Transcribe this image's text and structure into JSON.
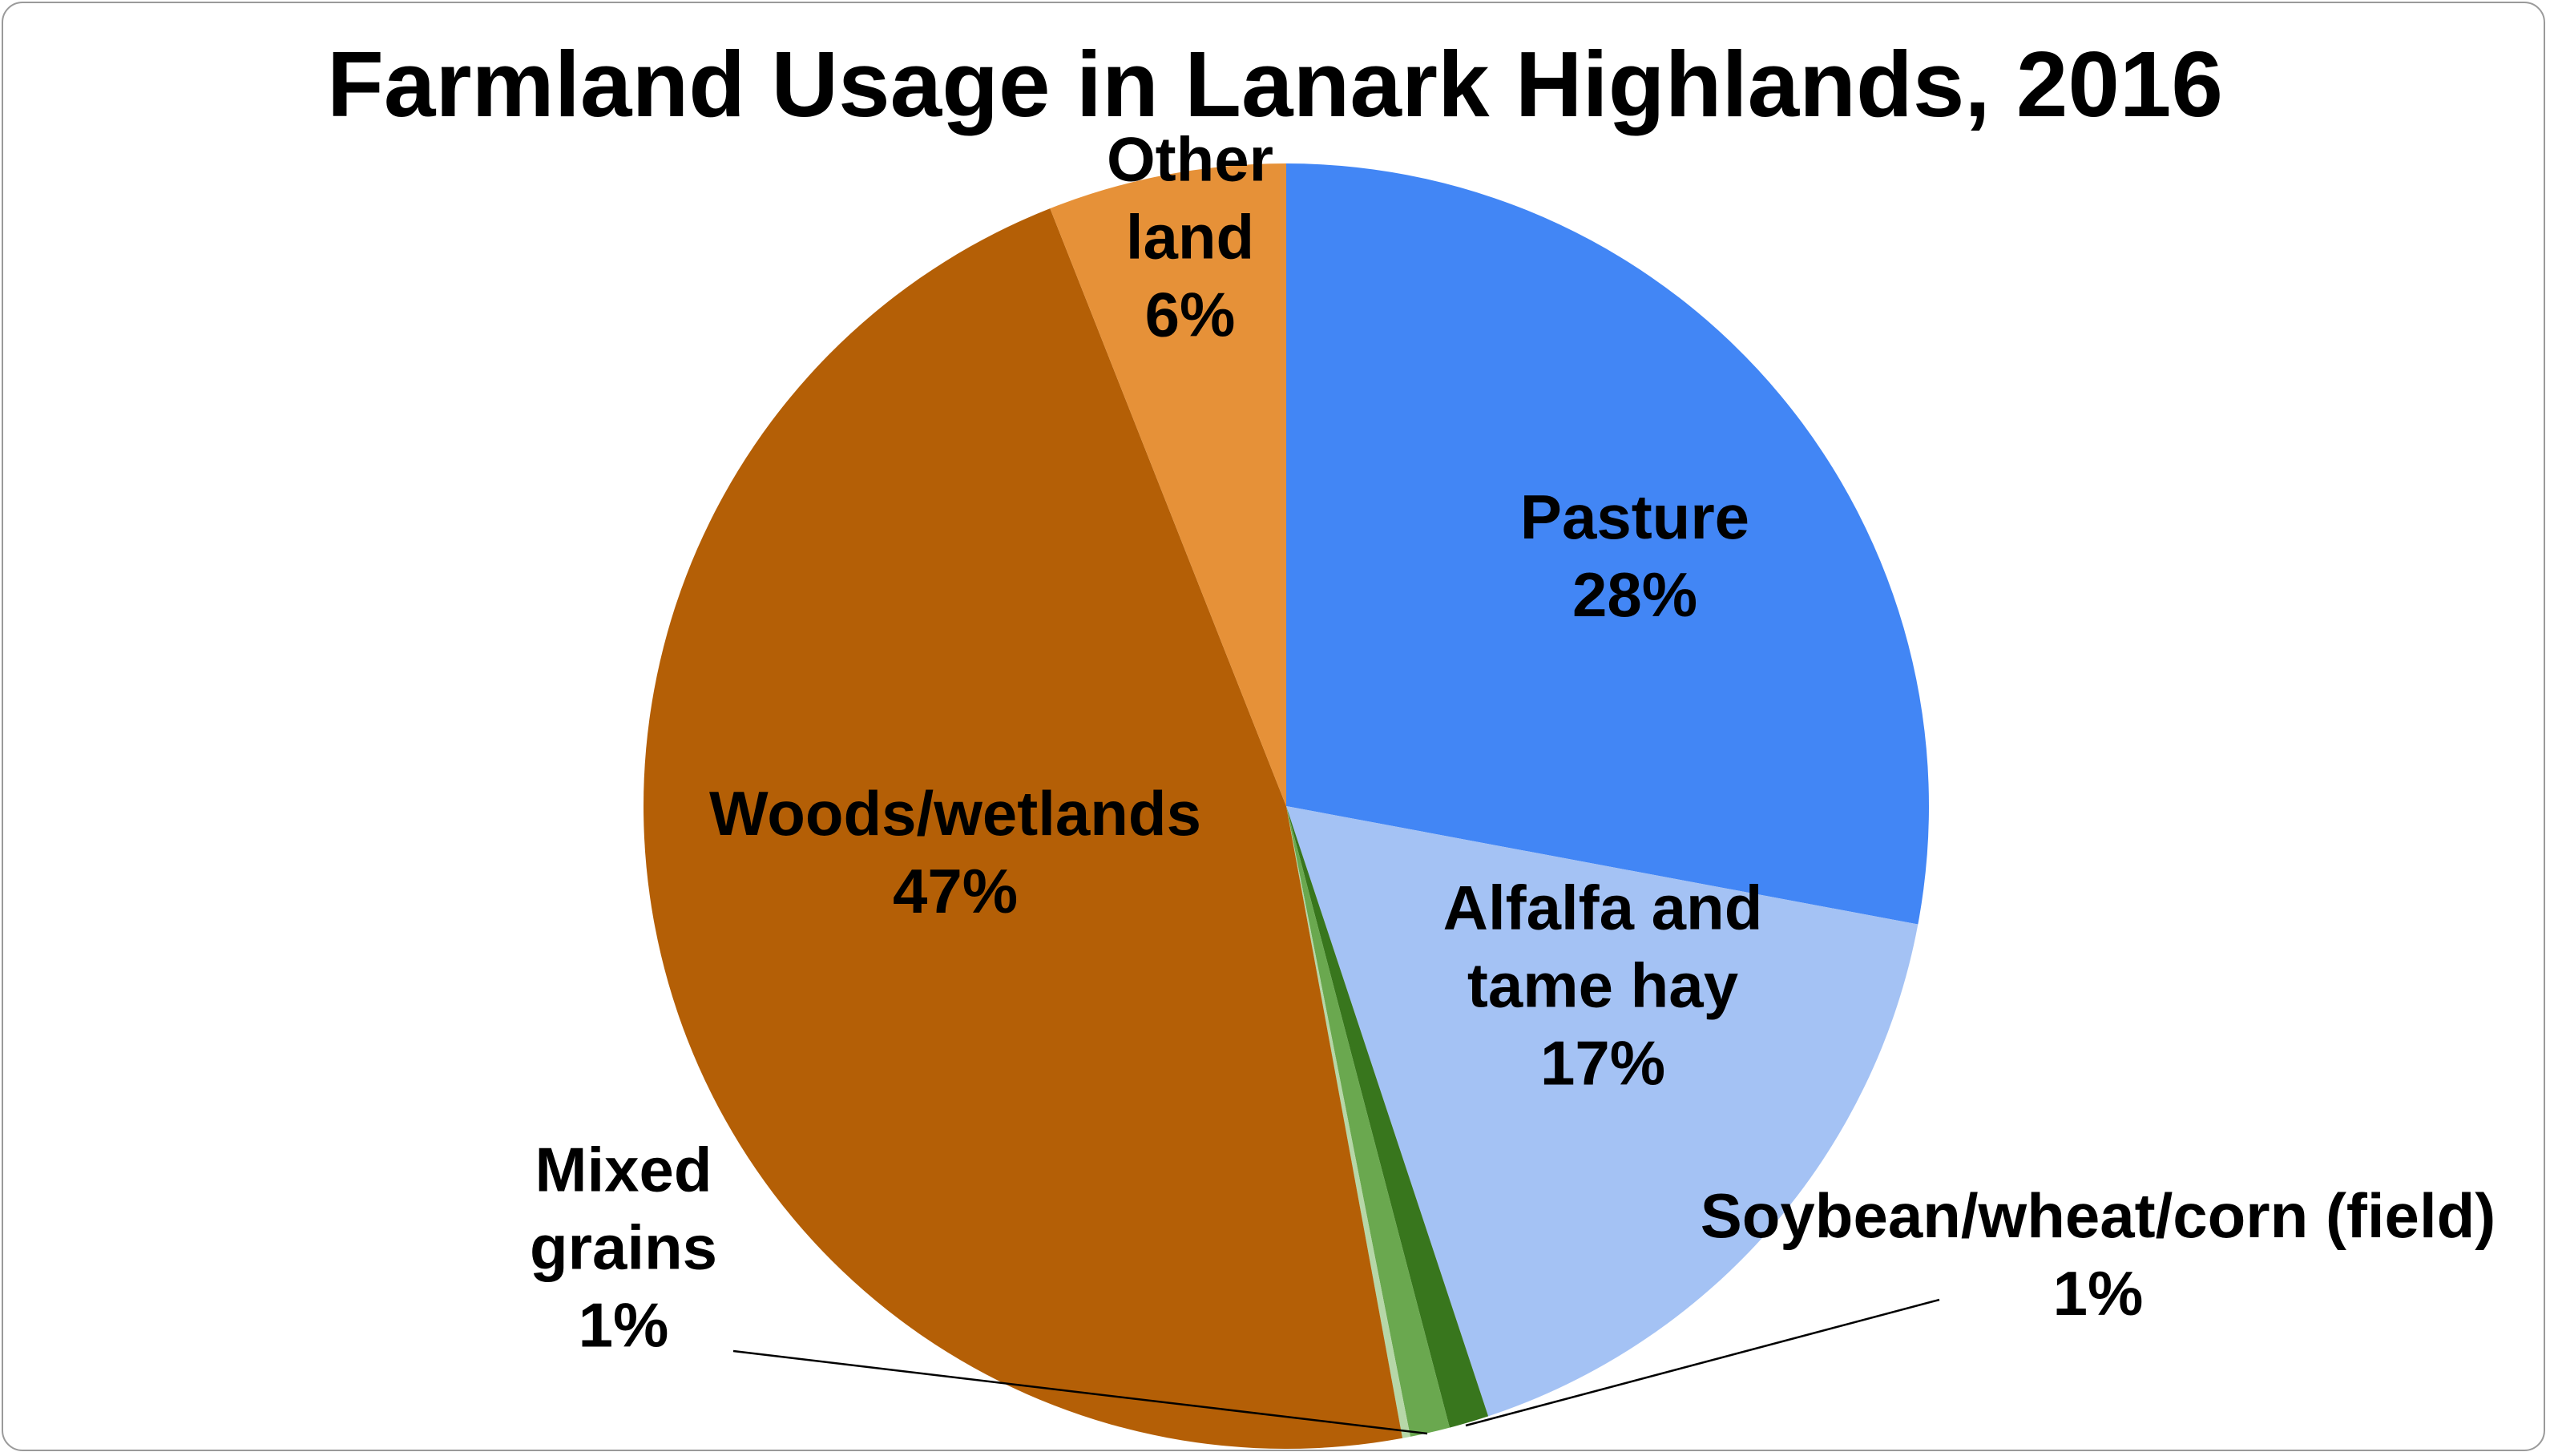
{
  "chart_data": {
    "type": "pie",
    "title": "Farmland Usage in Lanark Highlands, 2016",
    "slices": [
      {
        "name": "Pasture",
        "value": 28,
        "value_label": "28%",
        "label_lines": [
          "Pasture"
        ],
        "color": "#4286F5"
      },
      {
        "name": "Alfalfa and tame hay",
        "value": 17,
        "value_label": "17%",
        "label_lines": [
          "Alfalfa and",
          "tame hay"
        ],
        "color": "#A4C2F4"
      },
      {
        "name": "Soybean/wheat/corn (field)",
        "value": 1,
        "value_label": "1%",
        "label_lines": [
          "Soybean/wheat/corn (field)"
        ],
        "color": "#38761D"
      },
      {
        "name": "Mixed grains",
        "value": 1,
        "value_label": "1%",
        "label_lines": [
          "Mixed",
          "grains"
        ],
        "color": "#6AA84F"
      },
      {
        "name": "",
        "value": 0.2,
        "value_label": "",
        "label_lines": [],
        "color": "#B6D7A8"
      },
      {
        "name": "Woods/wetlands",
        "value": 47,
        "value_label": "47%",
        "label_lines": [
          "Woods/wetlands"
        ],
        "color": "#B45F06"
      },
      {
        "name": "Other land",
        "value": 6,
        "value_label": "6%",
        "label_lines": [
          "Other",
          "land"
        ],
        "color": "#E69138"
      }
    ],
    "start_angle_deg": 0,
    "direction": "clockwise",
    "legend": "none",
    "data_labels": "category name and percentage"
  }
}
